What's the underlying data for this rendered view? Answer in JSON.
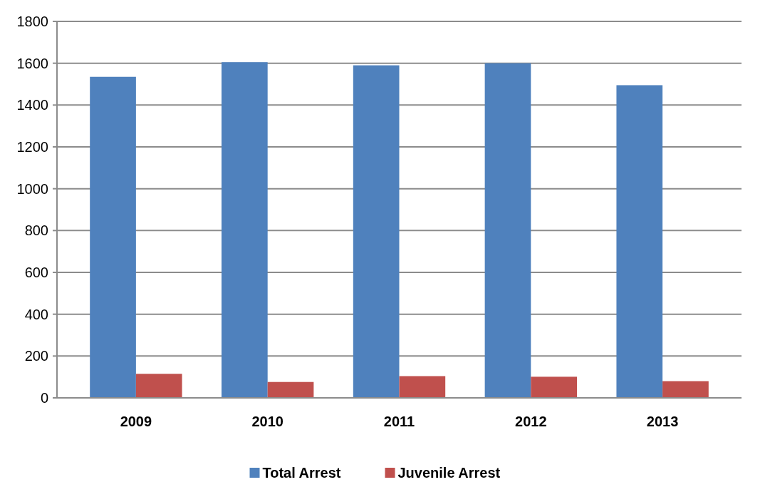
{
  "chart_data": {
    "type": "bar",
    "categories": [
      "2009",
      "2010",
      "2011",
      "2012",
      "2013"
    ],
    "series": [
      {
        "name": "Total Arrest",
        "color": "#4f81bd",
        "values": [
          1535,
          1605,
          1590,
          1600,
          1495
        ]
      },
      {
        "name": "Juvenile Arrest",
        "color": "#c0504d",
        "values": [
          115,
          76,
          104,
          101,
          80
        ]
      }
    ],
    "ylim": [
      0,
      1800
    ],
    "yticks": [
      0,
      200,
      400,
      600,
      800,
      1000,
      1200,
      1400,
      1600,
      1800
    ],
    "grid": "y",
    "legend": "bottom"
  }
}
